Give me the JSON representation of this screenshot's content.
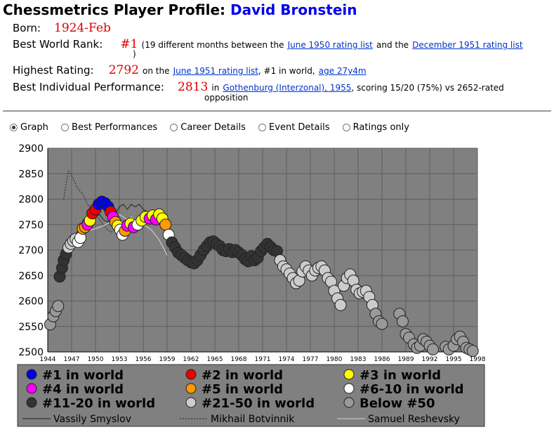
{
  "header": {
    "title_prefix": "Chessmetrics Player Profile:",
    "player_name": "David Bronstein"
  },
  "profile": {
    "born_label": "Born:",
    "born_value": "1924-Feb",
    "rank_label": "Best World Rank:",
    "rank_value": "#1",
    "rank_text_1": "(19 different months between the",
    "rank_link_1": "June 1950 rating list",
    "rank_text_2": "and the",
    "rank_link_2": "December 1951 rating list",
    "rank_text_3": ")",
    "rating_label": "Highest Rating:",
    "rating_value": "2792",
    "rating_text_1": "on the",
    "rating_link": "June 1951 rating list",
    "rating_text_2": ", #1 in world,",
    "rating_age_link": "age 27y4m",
    "perf_label": "Best Individual Performance:",
    "perf_value": "2813",
    "perf_text_1": "in",
    "perf_link": "Gothenburg (Interzonal), 1955",
    "perf_text_2": ", scoring 15/20 (75%) vs 2652-rated",
    "perf_text_3": "opposition"
  },
  "tabs": [
    {
      "label": "Graph",
      "selected": true
    },
    {
      "label": "Best Performances",
      "selected": false
    },
    {
      "label": "Career Details",
      "selected": false
    },
    {
      "label": "Event Details",
      "selected": false
    },
    {
      "label": "Ratings only",
      "selected": false
    }
  ],
  "legend": {
    "items": [
      {
        "label": "#1 in world",
        "color": "#0000ee"
      },
      {
        "label": "#2 in world",
        "color": "#ee0000"
      },
      {
        "label": "#3 in world",
        "color": "#ffff00"
      },
      {
        "label": "#4 in world",
        "color": "#ff00ff"
      },
      {
        "label": "#5 in world",
        "color": "#ff9900"
      },
      {
        "label": "#6-10 in world",
        "color": "#ffffff"
      },
      {
        "label": "#11-20 in world",
        "color": "#333333"
      },
      {
        "label": "#21-50 in world",
        "color": "#cccccc"
      },
      {
        "label": "Below #50",
        "color": "#999999"
      }
    ],
    "lines": [
      {
        "label": "Vassily Smyslov",
        "style": "solid"
      },
      {
        "label": "Mikhail Botvinnik",
        "style": "dotted"
      },
      {
        "label": "Samuel Reshevsky",
        "style": "light"
      }
    ]
  },
  "chart_data": {
    "type": "scatter",
    "ylim": [
      2500,
      2900
    ],
    "xlim": [
      1944,
      1998
    ],
    "yticks": [
      2500,
      2550,
      2600,
      2650,
      2700,
      2750,
      2800,
      2850,
      2900
    ],
    "xticks": [
      1944,
      1947,
      1950,
      1953,
      1956,
      1959,
      1962,
      1965,
      1968,
      1971,
      1974,
      1977,
      1980,
      1983,
      1986,
      1989,
      1992,
      1995,
      1998
    ],
    "grid": true,
    "legend_position": "bottom",
    "colors": {
      "rank1": "#0000ee",
      "rank2": "#ee0000",
      "rank3": "#ffff00",
      "rank4": "#ff00ff",
      "rank5": "#ff9900",
      "rank6_10": "#ffffff",
      "rank11_20": "#333333",
      "rank21_50": "#cccccc",
      "below50": "#999999",
      "plot_bg": "#808080"
    },
    "series": [
      {
        "name": "Bronstein",
        "points": [
          [
            1944.3,
            2554,
            "below50"
          ],
          [
            1944.7,
            2570,
            "below50"
          ],
          [
            1945.0,
            2580,
            "below50"
          ],
          [
            1945.3,
            2590,
            "below50"
          ],
          [
            1945.5,
            2648,
            "rank11_20"
          ],
          [
            1945.8,
            2665,
            "rank11_20"
          ],
          [
            1946.0,
            2680,
            "rank11_20"
          ],
          [
            1946.3,
            2692,
            "rank11_20"
          ],
          [
            1946.6,
            2705,
            "rank21_50"
          ],
          [
            1946.9,
            2712,
            "rank21_50"
          ],
          [
            1947.2,
            2718,
            "rank21_50"
          ],
          [
            1947.5,
            2722,
            "rank21_50"
          ],
          [
            1947.8,
            2716,
            "rank6_10"
          ],
          [
            1948.1,
            2724,
            "rank6_10"
          ],
          [
            1948.4,
            2742,
            "rank5"
          ],
          [
            1948.7,
            2745,
            "rank5"
          ],
          [
            1949.0,
            2750,
            "rank4"
          ],
          [
            1949.3,
            2758,
            "rank3"
          ],
          [
            1949.6,
            2772,
            "rank2"
          ],
          [
            1950.0,
            2780,
            "rank2"
          ],
          [
            1950.4,
            2790,
            "rank1"
          ],
          [
            1950.8,
            2795,
            "rank1"
          ],
          [
            1951.2,
            2792,
            "rank1"
          ],
          [
            1951.6,
            2785,
            "rank1"
          ],
          [
            1951.9,
            2775,
            "rank2"
          ],
          [
            1952.2,
            2765,
            "rank4"
          ],
          [
            1952.5,
            2755,
            "rank5"
          ],
          [
            1952.8,
            2748,
            "rank3"
          ],
          [
            1953.1,
            2740,
            "rank6_10"
          ],
          [
            1953.4,
            2730,
            "rank6_10"
          ],
          [
            1953.7,
            2738,
            "rank5"
          ],
          [
            1954.0,
            2748,
            "rank4"
          ],
          [
            1954.4,
            2752,
            "rank3"
          ],
          [
            1954.8,
            2745,
            "rank4"
          ],
          [
            1955.3,
            2750,
            "rank6_10"
          ],
          [
            1955.8,
            2758,
            "rank3"
          ],
          [
            1956.3,
            2765,
            "rank3"
          ],
          [
            1956.8,
            2762,
            "rank4"
          ],
          [
            1957.2,
            2768,
            "rank3"
          ],
          [
            1957.6,
            2760,
            "rank4"
          ],
          [
            1958.0,
            2770,
            "rank3"
          ],
          [
            1958.4,
            2762,
            "rank3"
          ],
          [
            1958.8,
            2750,
            "rank5"
          ],
          [
            1959.2,
            2730,
            "rank6_10"
          ],
          [
            1959.6,
            2715,
            "rank11_20"
          ],
          [
            1960.0,
            2705,
            "rank11_20"
          ],
          [
            1960.4,
            2695,
            "rank11_20"
          ],
          [
            1960.8,
            2690,
            "rank11_20"
          ],
          [
            1961.2,
            2685,
            "rank11_20"
          ],
          [
            1961.6,
            2680,
            "rank11_20"
          ],
          [
            1962.0,
            2676,
            "rank11_20"
          ],
          [
            1962.4,
            2674,
            "rank11_20"
          ],
          [
            1962.8,
            2680,
            "rank11_20"
          ],
          [
            1963.2,
            2690,
            "rank11_20"
          ],
          [
            1963.6,
            2700,
            "rank11_20"
          ],
          [
            1964.0,
            2708,
            "rank11_20"
          ],
          [
            1964.4,
            2715,
            "rank11_20"
          ],
          [
            1964.8,
            2717,
            "rank11_20"
          ],
          [
            1965.2,
            2712,
            "rank11_20"
          ],
          [
            1965.6,
            2708,
            "rank11_20"
          ],
          [
            1966.0,
            2700,
            "rank11_20"
          ],
          [
            1966.4,
            2698,
            "rank11_20"
          ],
          [
            1966.8,
            2702,
            "rank11_20"
          ],
          [
            1967.2,
            2696,
            "rank11_20"
          ],
          [
            1967.6,
            2700,
            "rank11_20"
          ],
          [
            1968.0,
            2695,
            "rank11_20"
          ],
          [
            1968.4,
            2690,
            "rank11_20"
          ],
          [
            1968.8,
            2682,
            "rank11_20"
          ],
          [
            1969.2,
            2678,
            "rank11_20"
          ],
          [
            1969.6,
            2688,
            "rank11_20"
          ],
          [
            1970.0,
            2680,
            "rank11_20"
          ],
          [
            1970.4,
            2685,
            "rank11_20"
          ],
          [
            1970.8,
            2698,
            "rank11_20"
          ],
          [
            1971.2,
            2705,
            "rank11_20"
          ],
          [
            1971.6,
            2712,
            "rank11_20"
          ],
          [
            1972.0,
            2706,
            "rank11_20"
          ],
          [
            1972.4,
            2700,
            "rank11_20"
          ],
          [
            1972.8,
            2698,
            "rank11_20"
          ],
          [
            1973.2,
            2680,
            "rank21_50"
          ],
          [
            1973.6,
            2668,
            "rank21_50"
          ],
          [
            1974.0,
            2662,
            "rank21_50"
          ],
          [
            1974.4,
            2654,
            "rank21_50"
          ],
          [
            1974.8,
            2645,
            "rank21_50"
          ],
          [
            1975.2,
            2635,
            "rank21_50"
          ],
          [
            1975.6,
            2640,
            "rank21_50"
          ],
          [
            1976.0,
            2658,
            "rank21_50"
          ],
          [
            1976.4,
            2668,
            "rank21_50"
          ],
          [
            1976.8,
            2660,
            "rank21_50"
          ],
          [
            1977.2,
            2650,
            "rank21_50"
          ],
          [
            1977.6,
            2660,
            "rank21_50"
          ],
          [
            1978.0,
            2665,
            "rank21_50"
          ],
          [
            1978.4,
            2668,
            "rank21_50"
          ],
          [
            1978.8,
            2660,
            "rank21_50"
          ],
          [
            1979.2,
            2645,
            "rank21_50"
          ],
          [
            1979.6,
            2638,
            "rank21_50"
          ],
          [
            1980.0,
            2620,
            "rank21_50"
          ],
          [
            1980.4,
            2605,
            "rank21_50"
          ],
          [
            1980.8,
            2592,
            "rank21_50"
          ],
          [
            1981.2,
            2630,
            "rank21_50"
          ],
          [
            1981.6,
            2645,
            "rank21_50"
          ],
          [
            1982.0,
            2652,
            "rank21_50"
          ],
          [
            1982.4,
            2640,
            "rank21_50"
          ],
          [
            1982.8,
            2622,
            "rank21_50"
          ],
          [
            1983.2,
            2615,
            "rank21_50"
          ],
          [
            1983.6,
            2618,
            "rank21_50"
          ],
          [
            1984.0,
            2620,
            "rank21_50"
          ],
          [
            1984.4,
            2608,
            "rank21_50"
          ],
          [
            1984.8,
            2592,
            "rank21_50"
          ],
          [
            1985.2,
            2575,
            "below50"
          ],
          [
            1985.6,
            2560,
            "below50"
          ],
          [
            1986.0,
            2555,
            "below50"
          ],
          [
            1988.2,
            2575,
            "below50"
          ],
          [
            1988.6,
            2560,
            "below50"
          ],
          [
            1989.0,
            2535,
            "below50"
          ],
          [
            1989.4,
            2528,
            "below50"
          ],
          [
            1990.0,
            2515,
            "below50"
          ],
          [
            1990.4,
            2508,
            "below50"
          ],
          [
            1990.8,
            2512,
            "below50"
          ],
          [
            1991.2,
            2525,
            "below50"
          ],
          [
            1991.6,
            2520,
            "below50"
          ],
          [
            1992.0,
            2512,
            "below50"
          ],
          [
            1992.4,
            2505,
            "below50"
          ],
          [
            1994.0,
            2510,
            "below50"
          ],
          [
            1994.4,
            2505,
            "below50"
          ],
          [
            1995.0,
            2512,
            "below50"
          ],
          [
            1995.4,
            2525,
            "below50"
          ],
          [
            1995.8,
            2530,
            "below50"
          ],
          [
            1996.2,
            2520,
            "below50"
          ],
          [
            1996.6,
            2508,
            "below50"
          ],
          [
            1997.0,
            2505,
            "below50"
          ],
          [
            1997.4,
            2502,
            "below50"
          ]
        ]
      },
      {
        "name": "Vassily Smyslov",
        "style": "solid",
        "points": [
          [
            1946.5,
            2690
          ],
          [
            1947.0,
            2710
          ],
          [
            1947.5,
            2730
          ],
          [
            1948.0,
            2745
          ],
          [
            1948.5,
            2760
          ],
          [
            1949.0,
            2765
          ],
          [
            1949.5,
            2770
          ],
          [
            1950.0,
            2765
          ],
          [
            1950.5,
            2770
          ],
          [
            1951.0,
            2760
          ],
          [
            1951.5,
            2755
          ],
          [
            1952.0,
            2760
          ],
          [
            1952.5,
            2770
          ],
          [
            1953.0,
            2785
          ],
          [
            1953.5,
            2790
          ],
          [
            1954.0,
            2780
          ],
          [
            1954.5,
            2790
          ],
          [
            1955.0,
            2785
          ],
          [
            1955.5,
            2790
          ],
          [
            1956.0,
            2780
          ],
          [
            1956.5,
            2775
          ],
          [
            1957.0,
            2770
          ],
          [
            1957.5,
            2765
          ],
          [
            1958.0,
            2760
          ]
        ]
      },
      {
        "name": "Mikhail Botvinnik",
        "style": "dotted",
        "points": [
          [
            1946.0,
            2800
          ],
          [
            1946.3,
            2830
          ],
          [
            1946.6,
            2855
          ],
          [
            1946.9,
            2850
          ],
          [
            1947.2,
            2840
          ],
          [
            1947.5,
            2830
          ],
          [
            1947.8,
            2820
          ],
          [
            1948.1,
            2815
          ],
          [
            1948.4,
            2810
          ],
          [
            1948.7,
            2800
          ],
          [
            1949.0,
            2790
          ],
          [
            1949.5,
            2780
          ],
          [
            1950.0,
            2770
          ],
          [
            1950.5,
            2760
          ],
          [
            1951.0,
            2750
          ],
          [
            1951.5,
            2740
          ],
          [
            1952.0,
            2735
          ],
          [
            1952.5,
            2745
          ],
          [
            1953.0,
            2755
          ],
          [
            1953.5,
            2750
          ],
          [
            1954.0,
            2760
          ],
          [
            1954.5,
            2755
          ],
          [
            1955.0,
            2760
          ]
        ]
      },
      {
        "name": "Samuel Reshevsky",
        "style": "light",
        "points": [
          [
            1948.5,
            2730
          ],
          [
            1949.0,
            2735
          ],
          [
            1949.5,
            2740
          ],
          [
            1950.0,
            2742
          ],
          [
            1950.5,
            2745
          ],
          [
            1951.0,
            2748
          ],
          [
            1951.5,
            2752
          ],
          [
            1952.0,
            2755
          ],
          [
            1952.5,
            2760
          ],
          [
            1953.0,
            2770
          ],
          [
            1953.5,
            2765
          ],
          [
            1954.0,
            2760
          ],
          [
            1954.5,
            2765
          ],
          [
            1955.0,
            2760
          ],
          [
            1955.5,
            2755
          ],
          [
            1956.0,
            2750
          ],
          [
            1956.5,
            2745
          ],
          [
            1957.0,
            2740
          ],
          [
            1957.5,
            2730
          ],
          [
            1958.0,
            2720
          ],
          [
            1958.5,
            2705
          ],
          [
            1959.0,
            2690
          ]
        ]
      }
    ]
  }
}
